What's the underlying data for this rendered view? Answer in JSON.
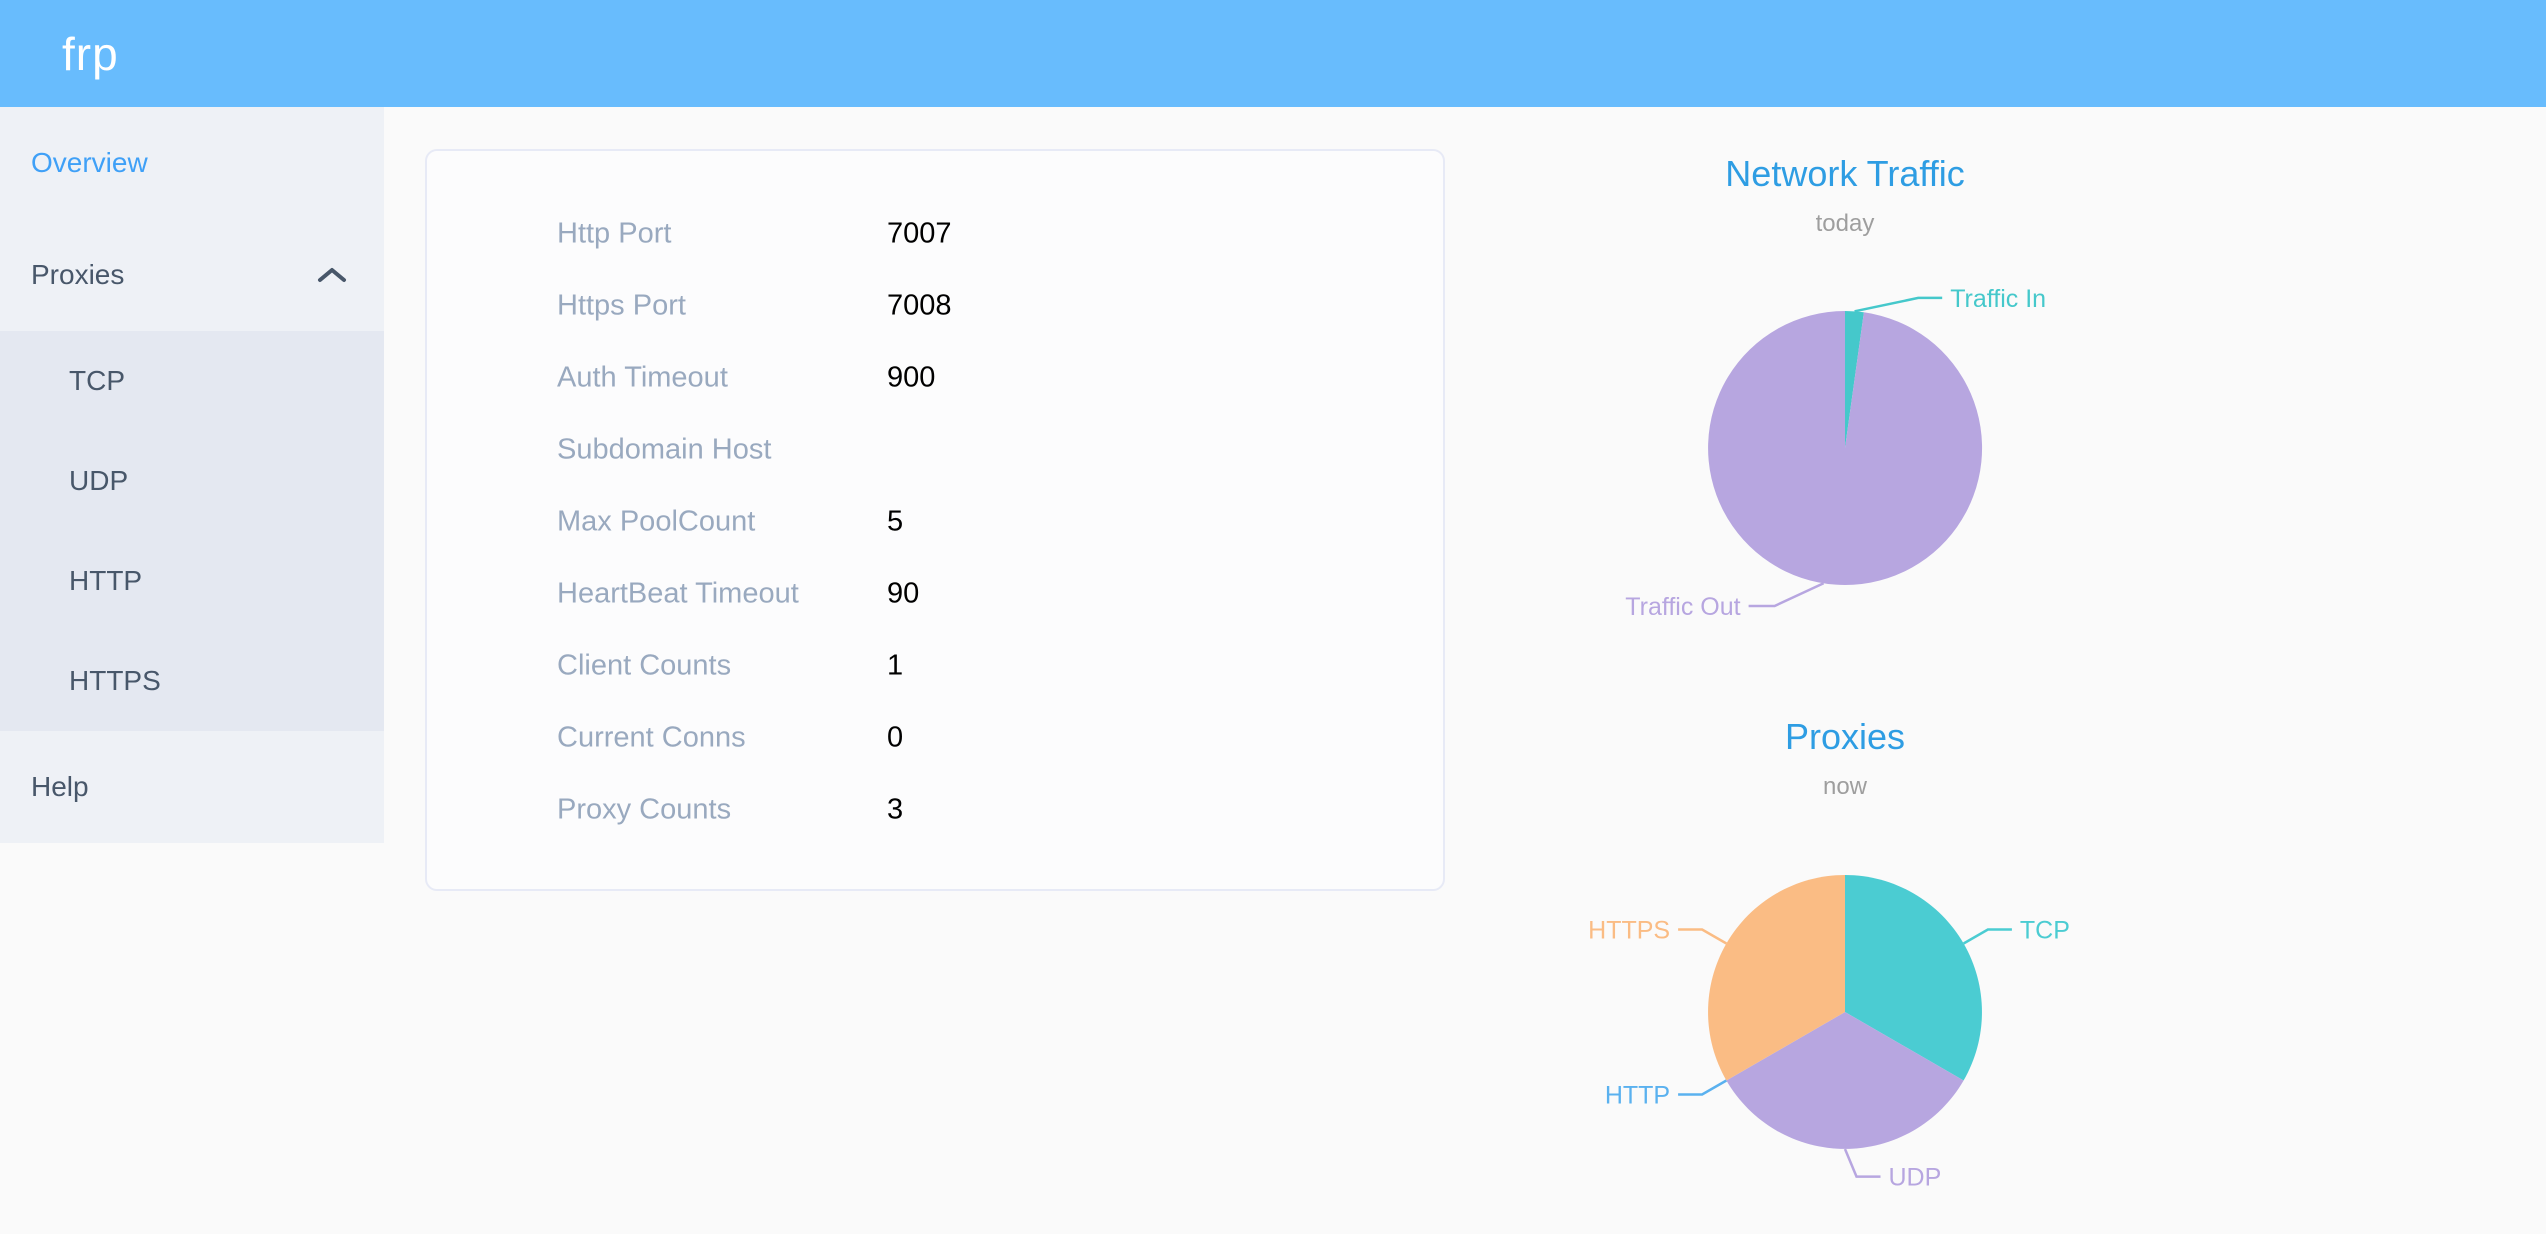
{
  "header": {
    "logo": "frp"
  },
  "sidebar": {
    "items": [
      {
        "id": "overview",
        "label": "Overview",
        "active": true
      },
      {
        "id": "proxies",
        "label": "Proxies",
        "expanded": true,
        "children": [
          "TCP",
          "UDP",
          "HTTP",
          "HTTPS"
        ]
      },
      {
        "id": "help",
        "label": "Help"
      }
    ]
  },
  "server_info": {
    "rows": [
      {
        "label": "Http Port",
        "value": "7007"
      },
      {
        "label": "Https Port",
        "value": "7008"
      },
      {
        "label": "Auth Timeout",
        "value": "900"
      },
      {
        "label": "Subdomain Host",
        "value": ""
      },
      {
        "label": "Max PoolCount",
        "value": "5"
      },
      {
        "label": "HeartBeat Timeout",
        "value": "90"
      },
      {
        "label": "Client Counts",
        "value": "1"
      },
      {
        "label": "Current Conns",
        "value": "0"
      },
      {
        "label": "Proxy Counts",
        "value": "3"
      }
    ]
  },
  "chart_data": [
    {
      "type": "pie",
      "title": "Network Traffic",
      "subtitle": "today",
      "legend_position": "none",
      "labels": "outside",
      "series": [
        {
          "name": "Traffic In",
          "pct": 2.2,
          "color": "#45c8cb"
        },
        {
          "name": "Traffic Out",
          "pct": 97.8,
          "color": "#b7a6e0"
        }
      ]
    },
    {
      "type": "pie",
      "title": "Proxies",
      "subtitle": "now",
      "legend_position": "none",
      "labels": "outside",
      "series": [
        {
          "name": "TCP",
          "pct": 33.33,
          "color": "#4bccd2"
        },
        {
          "name": "UDP",
          "pct": 33.33,
          "color": "#b7a6e0"
        },
        {
          "name": "HTTP",
          "pct": 0,
          "color": "#5ab1ef"
        },
        {
          "name": "HTTPS",
          "pct": 33.33,
          "color": "#fabc84"
        }
      ]
    }
  ],
  "colors": {
    "header_bg": "#68bcfd",
    "sidebar_bg": "#eef1f6",
    "submenu_bg": "#e4e8f1",
    "menu_text": "#48576a",
    "menu_active": "#3fa0f7",
    "chart_title": "#2e9de3",
    "table_label": "#99a9bf",
    "table_value": "#000000"
  }
}
